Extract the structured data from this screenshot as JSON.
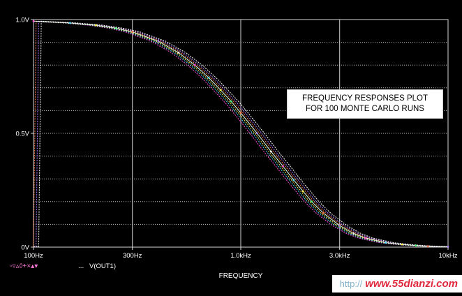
{
  "chart_data": {
    "type": "line",
    "x_scale": "log",
    "xlim": [
      100,
      10000
    ],
    "ylim": [
      0,
      1.0
    ],
    "xlabel": "FREQUENCY",
    "ylabel": "",
    "x_ticks": [
      {
        "value": 100,
        "label": "100Hz"
      },
      {
        "value": 300,
        "label": "300Hz"
      },
      {
        "value": 1000,
        "label": "1.0kHz"
      },
      {
        "value": 3000,
        "label": "3.0kHz"
      },
      {
        "value": 10000,
        "label": "10kHz"
      }
    ],
    "y_ticks": [
      {
        "value": 0,
        "label": "0V"
      },
      {
        "value": 0.5,
        "label": "0.5V"
      },
      {
        "value": 1.0,
        "label": "1.0V"
      }
    ],
    "grid": true,
    "legend": {
      "position": "bottom-left",
      "label": "V(OUT1)",
      "marker_glyphs": "◦▿▵◊+×▴▾",
      "ellipsis": "..."
    },
    "annotation": {
      "line1": "FREQUENCY RESPONSES PLOT",
      "line2": "FOR 100 MONTE CARLO RUNS"
    },
    "series": [
      {
        "x": [
          100,
          150,
          200,
          250,
          300,
          400,
          500,
          600,
          700,
          800,
          900,
          1000,
          1200,
          1400,
          1600,
          1800,
          2000,
          2200,
          2500,
          3000,
          3500,
          4000,
          5000,
          6000,
          7000,
          8000,
          10000
        ],
        "y": [
          0.993,
          0.985,
          0.975,
          0.962,
          0.946,
          0.905,
          0.855,
          0.8,
          0.745,
          0.69,
          0.64,
          0.59,
          0.5,
          0.42,
          0.355,
          0.295,
          0.245,
          0.2,
          0.15,
          0.095,
          0.06,
          0.04,
          0.02,
          0.012,
          0.007,
          0.004,
          0.002
        ]
      }
    ],
    "colors": [
      "#ff4fd8",
      "#4fd8ff",
      "#ffff4f",
      "#4fff7a",
      "#ff7a4f",
      "#a97aff",
      "#ffffff"
    ]
  },
  "watermark": {
    "left": "http://",
    "right": "www.55dianzi.com"
  }
}
